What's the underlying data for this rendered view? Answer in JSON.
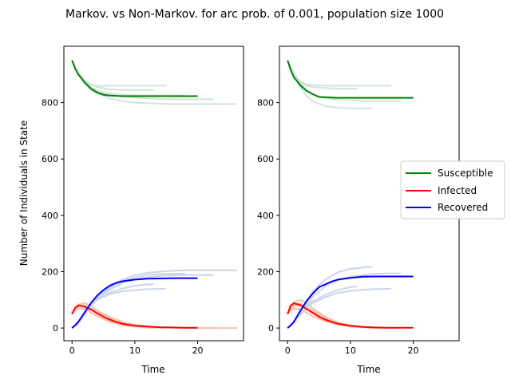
{
  "figure_title": "Markov. vs Non-Markov. for arc prob. of 0.001, population size 1000",
  "colors": {
    "Susceptible": "#008000",
    "Infected": "#ff0000",
    "Recovered": "#0000ff",
    "Susceptible_faint": "#cfe6d9",
    "Infected_faint": "#f5c2ae",
    "Recovered_faint": "#cdd4ee"
  },
  "chart_data": [
    {
      "type": "line",
      "title": "",
      "xlabel": "Time",
      "ylabel": "Number of Individuals in State",
      "xlim": [
        -1.3,
        27.3
      ],
      "ylim": [
        -45,
        1000
      ],
      "xticks": [
        0,
        10,
        20
      ],
      "yticks": [
        0,
        200,
        400,
        600,
        800
      ],
      "grid": false,
      "series": [
        {
          "name": "Susceptible",
          "x": [
            0,
            0.5,
            1,
            2,
            3,
            4,
            5,
            6,
            7,
            8,
            10,
            12,
            14,
            16,
            18,
            20
          ],
          "values": [
            950,
            920,
            900,
            872,
            850,
            836,
            828,
            825,
            824,
            823,
            823,
            823,
            823,
            823,
            823,
            823
          ]
        },
        {
          "name": "Infected",
          "x": [
            0,
            0.5,
            1,
            2,
            3,
            4,
            5,
            6,
            7,
            8,
            10,
            12,
            14,
            16,
            18,
            20
          ],
          "values": [
            50,
            72,
            80,
            76,
            66,
            52,
            40,
            30,
            22,
            15,
            8,
            5,
            3,
            2,
            1,
            1
          ]
        },
        {
          "name": "Recovered",
          "x": [
            0,
            0.5,
            1,
            2,
            3,
            4,
            5,
            6,
            7,
            8,
            10,
            12,
            14,
            16,
            18,
            20
          ],
          "values": [
            0,
            10,
            22,
            55,
            88,
            115,
            135,
            150,
            160,
            166,
            172,
            175,
            176,
            177,
            177,
            177
          ]
        }
      ],
      "replicates": [
        {
          "state": "Susceptible",
          "x": [
            0,
            1,
            2,
            3,
            4,
            6,
            8,
            10,
            12,
            15
          ],
          "values": [
            950,
            905,
            872,
            862,
            860,
            860,
            860,
            860,
            860,
            860
          ]
        },
        {
          "state": "Susceptible",
          "x": [
            0,
            1,
            2,
            3,
            4,
            6,
            8,
            10,
            12,
            14,
            16,
            18,
            20,
            22.5
          ],
          "values": [
            950,
            905,
            868,
            850,
            838,
            828,
            822,
            818,
            815,
            813,
            812,
            812,
            812,
            812
          ]
        },
        {
          "state": "Susceptible",
          "x": [
            0,
            1,
            2,
            3,
            4,
            6,
            8,
            10,
            12,
            14,
            16,
            18,
            20,
            22,
            24,
            26.3
          ],
          "values": [
            950,
            905,
            868,
            845,
            832,
            815,
            805,
            800,
            798,
            796,
            795,
            795,
            795,
            795,
            795,
            795
          ]
        },
        {
          "state": "Susceptible",
          "x": [
            0,
            1,
            2,
            3,
            4,
            6,
            8,
            10,
            12,
            13
          ],
          "values": [
            950,
            910,
            880,
            865,
            855,
            848,
            845,
            845,
            845,
            845
          ]
        },
        {
          "state": "Susceptible",
          "x": [
            0,
            1,
            2,
            3,
            4,
            6,
            8,
            10,
            12,
            14,
            16,
            18
          ],
          "values": [
            950,
            908,
            875,
            855,
            842,
            832,
            828,
            826,
            826,
            826,
            826,
            826
          ]
        },
        {
          "state": "Infected",
          "x": [
            0,
            1,
            2,
            3,
            4,
            6,
            8,
            10,
            12,
            15
          ],
          "values": [
            50,
            85,
            75,
            55,
            42,
            22,
            10,
            5,
            2,
            0
          ]
        },
        {
          "state": "Infected",
          "x": [
            0,
            1,
            2,
            3,
            4,
            6,
            8,
            10,
            12,
            14,
            16,
            18,
            20,
            22.5
          ],
          "values": [
            50,
            78,
            82,
            70,
            58,
            36,
            20,
            10,
            5,
            2,
            1,
            0,
            0,
            0
          ]
        },
        {
          "state": "Infected",
          "x": [
            0,
            1,
            2,
            3,
            4,
            6,
            8,
            10,
            12,
            14,
            16,
            18,
            20,
            22,
            24,
            26.3
          ],
          "values": [
            50,
            82,
            90,
            78,
            62,
            40,
            22,
            12,
            6,
            3,
            1,
            0,
            0,
            0,
            0,
            0
          ]
        },
        {
          "state": "Infected",
          "x": [
            0,
            1,
            2,
            3,
            4,
            6,
            8,
            10,
            12,
            13
          ],
          "values": [
            50,
            70,
            68,
            55,
            42,
            25,
            14,
            6,
            2,
            0
          ]
        },
        {
          "state": "Recovered",
          "x": [
            0,
            1,
            2,
            3,
            4,
            6,
            8,
            10,
            12,
            15
          ],
          "values": [
            0,
            20,
            50,
            80,
            100,
            120,
            130,
            135,
            138,
            140
          ]
        },
        {
          "state": "Recovered",
          "x": [
            0,
            1,
            2,
            3,
            4,
            6,
            8,
            10,
            12,
            14,
            16,
            18,
            20,
            22.5
          ],
          "values": [
            0,
            18,
            50,
            80,
            105,
            135,
            160,
            172,
            180,
            185,
            187,
            188,
            188,
            188
          ]
        },
        {
          "state": "Recovered",
          "x": [
            0,
            1,
            2,
            3,
            4,
            6,
            8,
            10,
            12,
            14,
            16,
            18,
            20,
            22,
            24,
            26.3
          ],
          "values": [
            0,
            15,
            45,
            78,
            108,
            148,
            172,
            188,
            196,
            200,
            203,
            205,
            205,
            205,
            205,
            205
          ]
        },
        {
          "state": "Recovered",
          "x": [
            0,
            1,
            2,
            3,
            4,
            6,
            8,
            10,
            12,
            13
          ],
          "values": [
            0,
            20,
            50,
            78,
            100,
            125,
            140,
            150,
            155,
            155
          ]
        },
        {
          "state": "Recovered",
          "x": [
            0,
            1,
            2,
            3,
            4,
            6,
            8,
            10,
            12,
            14,
            16,
            18
          ],
          "values": [
            0,
            18,
            48,
            80,
            108,
            142,
            165,
            180,
            188,
            192,
            193,
            193
          ]
        }
      ]
    },
    {
      "type": "line",
      "title": "",
      "xlabel": "Time",
      "ylabel": "",
      "xlim": [
        -1.3,
        27.3
      ],
      "ylim": [
        -45,
        1000
      ],
      "xticks": [
        0,
        10,
        20
      ],
      "yticks": [
        0,
        200,
        400,
        600,
        800
      ],
      "grid": false,
      "series": [
        {
          "name": "Susceptible",
          "x": [
            0,
            0.5,
            1,
            2,
            3,
            4,
            5,
            6,
            7,
            8,
            10,
            12,
            14,
            16,
            18,
            20
          ],
          "values": [
            950,
            915,
            890,
            862,
            842,
            830,
            820,
            819,
            818,
            817,
            817,
            817,
            817,
            817,
            817,
            817
          ]
        },
        {
          "name": "Infected",
          "x": [
            0,
            0.5,
            1,
            2,
            3,
            4,
            5,
            6,
            7,
            8,
            10,
            12,
            14,
            16,
            18,
            20
          ],
          "values": [
            50,
            80,
            88,
            82,
            68,
            54,
            40,
            30,
            22,
            15,
            8,
            4,
            2,
            1,
            1,
            1
          ]
        },
        {
          "name": "Recovered",
          "x": [
            0,
            0.5,
            1,
            2,
            3,
            4,
            5,
            6,
            7,
            8,
            10,
            12,
            14,
            16,
            18,
            20
          ],
          "values": [
            0,
            10,
            22,
            60,
            95,
            122,
            145,
            155,
            165,
            172,
            178,
            182,
            183,
            183,
            183,
            183
          ]
        }
      ],
      "replicates": [
        {
          "state": "Susceptible",
          "x": [
            0,
            1,
            2,
            3,
            4,
            6,
            8,
            10,
            12,
            14,
            16.5
          ],
          "values": [
            950,
            900,
            875,
            865,
            862,
            860,
            860,
            860,
            860,
            860,
            860
          ]
        },
        {
          "state": "Susceptible",
          "x": [
            0,
            1,
            2,
            3,
            4,
            6,
            8,
            10,
            11
          ],
          "values": [
            950,
            905,
            872,
            860,
            855,
            852,
            850,
            850,
            850
          ]
        },
        {
          "state": "Susceptible",
          "x": [
            0,
            1,
            2,
            3,
            4,
            6,
            8,
            10,
            12,
            13.5
          ],
          "values": [
            950,
            900,
            855,
            825,
            805,
            788,
            782,
            780,
            780,
            780
          ]
        },
        {
          "state": "Susceptible",
          "x": [
            0,
            1,
            2,
            3,
            4,
            6,
            8,
            10,
            12,
            14,
            16,
            18
          ],
          "values": [
            950,
            905,
            868,
            845,
            830,
            815,
            810,
            808,
            806,
            806,
            806,
            806
          ]
        },
        {
          "state": "Infected",
          "x": [
            0,
            1,
            2,
            3,
            4,
            6,
            8,
            10,
            12,
            14,
            16.5
          ],
          "values": [
            50,
            70,
            66,
            55,
            42,
            24,
            12,
            5,
            2,
            0,
            0
          ]
        },
        {
          "state": "Infected",
          "x": [
            0,
            1,
            2,
            3,
            4,
            6,
            8,
            10,
            11
          ],
          "values": [
            50,
            78,
            80,
            68,
            55,
            32,
            16,
            6,
            2
          ]
        },
        {
          "state": "Infected",
          "x": [
            0,
            1,
            2,
            3,
            4,
            6,
            8,
            10,
            12,
            13.5
          ],
          "values": [
            50,
            92,
            100,
            88,
            70,
            40,
            20,
            8,
            3,
            0
          ]
        },
        {
          "state": "Infected",
          "x": [
            0,
            1,
            2,
            3,
            4,
            6,
            8,
            10,
            12,
            14,
            16,
            18
          ],
          "values": [
            50,
            80,
            88,
            76,
            62,
            38,
            20,
            10,
            4,
            1,
            0,
            0
          ]
        },
        {
          "state": "Recovered",
          "x": [
            0,
            1,
            2,
            3,
            4,
            6,
            8,
            10,
            12,
            14,
            16.5
          ],
          "values": [
            0,
            20,
            45,
            70,
            88,
            110,
            125,
            132,
            136,
            138,
            140
          ]
        },
        {
          "state": "Recovered",
          "x": [
            0,
            1,
            2,
            3,
            4,
            6,
            8,
            10,
            11
          ],
          "values": [
            0,
            20,
            48,
            75,
            95,
            118,
            135,
            145,
            148
          ]
        },
        {
          "state": "Recovered",
          "x": [
            0,
            1,
            2,
            3,
            4,
            6,
            8,
            10,
            12,
            13.5
          ],
          "values": [
            0,
            18,
            55,
            95,
            130,
            172,
            198,
            210,
            215,
            218
          ]
        },
        {
          "state": "Recovered",
          "x": [
            0,
            1,
            2,
            3,
            4,
            6,
            8,
            10,
            12,
            14,
            16,
            18
          ],
          "values": [
            0,
            18,
            48,
            82,
            110,
            148,
            170,
            182,
            188,
            192,
            194,
            194
          ]
        }
      ]
    }
  ],
  "legend": {
    "placement": "right",
    "entries": [
      "Susceptible",
      "Infected",
      "Recovered"
    ]
  }
}
